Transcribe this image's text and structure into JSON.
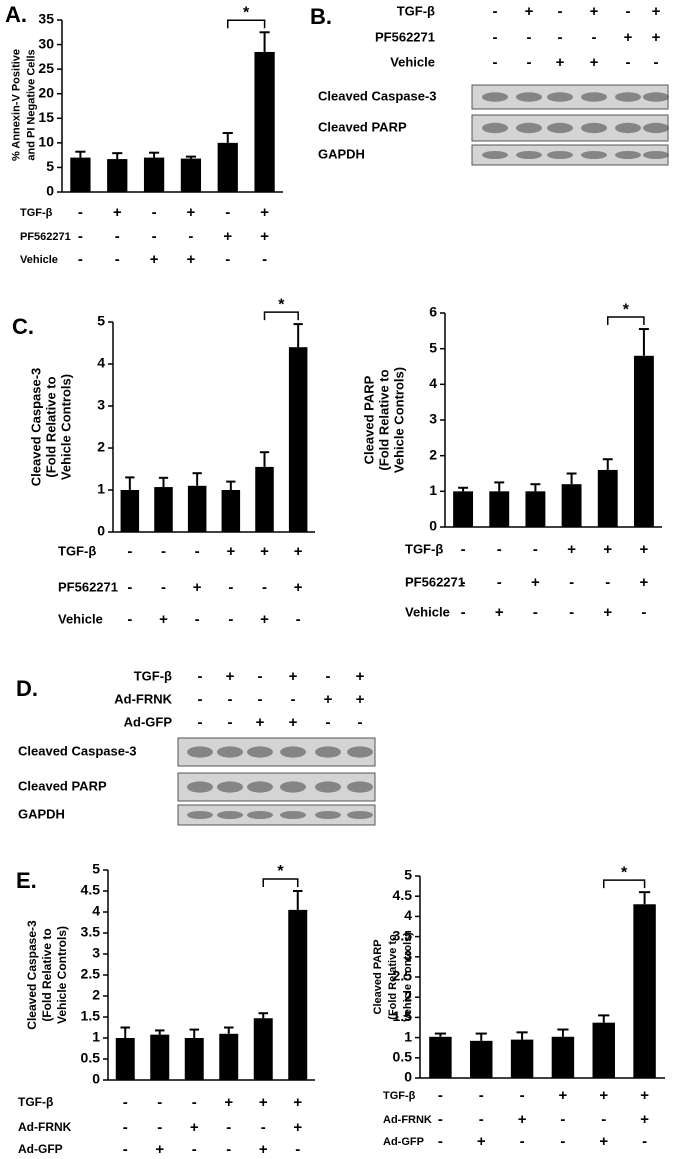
{
  "chart_data": [
    {
      "type": "bar",
      "panel": "A.",
      "ylabel": [
        "% Annexin-V Positive",
        "and PI Negative Cells"
      ],
      "categories": [
        null,
        null,
        null,
        null,
        null,
        null
      ],
      "values": [
        7,
        6.7,
        7,
        6.8,
        10,
        28.5
      ],
      "errors": [
        1.2,
        1.2,
        1,
        0.4,
        2,
        4
      ],
      "ylim": [
        0,
        35
      ],
      "yticks": [
        0,
        5,
        10,
        15,
        20,
        25,
        30,
        35
      ],
      "color": "#000000",
      "significance_label": "*",
      "conditions": [
        {
          "name": "TGF-β",
          "signs": [
            "-",
            "+",
            "-",
            "+",
            "-",
            "+"
          ]
        },
        {
          "name": "PF562271",
          "signs": [
            "-",
            "-",
            "-",
            "-",
            "+",
            "+"
          ]
        },
        {
          "name": "Vehicle",
          "signs": [
            "-",
            "-",
            "+",
            "+",
            "-",
            "-"
          ]
        }
      ]
    },
    {
      "type": "bar",
      "panel": "C.",
      "ylabel": [
        "Cleaved Caspase-3",
        "(Fold Relative to",
        "Vehicle Controls)"
      ],
      "categories": [
        null,
        null,
        null,
        null,
        null,
        null
      ],
      "values": [
        1,
        1.07,
        1.1,
        1,
        1.55,
        4.4
      ],
      "errors": [
        0.3,
        0.22,
        0.3,
        0.2,
        0.35,
        0.55
      ],
      "ylim": [
        0,
        5
      ],
      "yticks": [
        0,
        1,
        2,
        3,
        4,
        5
      ],
      "color": "#000000",
      "significance_label": "*",
      "conditions": [
        {
          "name": "TGF-β",
          "signs": [
            "-",
            "-",
            "-",
            "+",
            "+",
            "+"
          ]
        },
        {
          "name": "PF562271",
          "signs": [
            "-",
            "-",
            "+",
            "-",
            "-",
            "+"
          ]
        },
        {
          "name": "Vehicle",
          "signs": [
            "-",
            "+",
            "-",
            "-",
            "+",
            "-"
          ]
        }
      ]
    },
    {
      "type": "bar",
      "ylabel": [
        "Cleaved PARP",
        "(Fold Relative to",
        "Vehicle Controls)"
      ],
      "categories": [
        null,
        null,
        null,
        null,
        null,
        null
      ],
      "values": [
        1,
        1,
        1,
        1.2,
        1.6,
        4.8
      ],
      "errors": [
        0.1,
        0.25,
        0.2,
        0.3,
        0.3,
        0.75
      ],
      "ylim": [
        0,
        6
      ],
      "yticks": [
        0,
        1,
        2,
        3,
        4,
        5,
        6
      ],
      "color": "#000000",
      "significance_label": "*",
      "conditions": [
        {
          "name": "TGF-β",
          "signs": [
            "-",
            "-",
            "-",
            "+",
            "+",
            "+"
          ]
        },
        {
          "name": "PF562271",
          "signs": [
            "-",
            "-",
            "+",
            "-",
            "-",
            "+"
          ]
        },
        {
          "name": "Vehicle",
          "signs": [
            "-",
            "+",
            "-",
            "-",
            "+",
            "-"
          ]
        }
      ]
    },
    {
      "type": "bar",
      "panel": "E.",
      "ylabel": [
        "Cleaved Caspase-3",
        "(Fold Relative to",
        "Vehicle Controls)"
      ],
      "categories": [
        null,
        null,
        null,
        null,
        null,
        null
      ],
      "values": [
        1,
        1.08,
        1,
        1.1,
        1.47,
        4.05
      ],
      "errors": [
        0.25,
        0.1,
        0.2,
        0.15,
        0.12,
        0.45
      ],
      "ylim": [
        0,
        5
      ],
      "yticks": [
        0,
        0.5,
        1,
        1.5,
        2,
        2.5,
        3,
        3.5,
        4,
        4.5,
        5
      ],
      "color": "#000000",
      "significance_label": "*",
      "conditions": [
        {
          "name": "TGF-β",
          "signs": [
            "-",
            "-",
            "-",
            "+",
            "+",
            "+"
          ]
        },
        {
          "name": "Ad-FRNK",
          "signs": [
            "-",
            "-",
            "+",
            "-",
            "-",
            "+"
          ]
        },
        {
          "name": "Ad-GFP",
          "signs": [
            "-",
            "+",
            "-",
            "-",
            "+",
            "-"
          ]
        }
      ]
    },
    {
      "type": "bar",
      "ylabel": [
        "Cleaved PARP",
        "(Fold Relative to",
        "Vehicle Controls)"
      ],
      "categories": [
        null,
        null,
        null,
        null,
        null,
        null
      ],
      "values": [
        1.02,
        0.92,
        0.95,
        1.02,
        1.37,
        4.3
      ],
      "errors": [
        0.08,
        0.18,
        0.18,
        0.18,
        0.18,
        0.3
      ],
      "ylim": [
        0,
        5
      ],
      "yticks": [
        0,
        0.5,
        1,
        1.5,
        2,
        2.5,
        3,
        3.5,
        4,
        4.5,
        5
      ],
      "color": "#000000",
      "significance_label": "*",
      "conditions": [
        {
          "name": "TGF-β",
          "signs": [
            "-",
            "-",
            "-",
            "+",
            "+",
            "+"
          ]
        },
        {
          "name": "Ad-FRNK",
          "signs": [
            "-",
            "-",
            "+",
            "-",
            "-",
            "+"
          ]
        },
        {
          "name": "Ad-GFP",
          "signs": [
            "-",
            "+",
            "-",
            "-",
            "+",
            "-"
          ]
        }
      ]
    }
  ],
  "blots": [
    {
      "panel": "B.",
      "rows": [
        "Cleaved Caspase-3",
        "Cleaved PARP",
        "GAPDH"
      ],
      "conditions": [
        {
          "name": "TGF-β",
          "signs": [
            "-",
            "+",
            "-",
            "+",
            "-",
            "+"
          ]
        },
        {
          "name": "PF562271",
          "signs": [
            "-",
            "-",
            "-",
            "-",
            "+",
            "+"
          ]
        },
        {
          "name": "Vehicle",
          "signs": [
            "-",
            "-",
            "+",
            "+",
            "-",
            "-"
          ]
        }
      ]
    },
    {
      "panel": "D.",
      "rows": [
        "Cleaved Caspase-3",
        "Cleaved PARP",
        "GAPDH"
      ],
      "conditions": [
        {
          "name": "TGF-β",
          "signs": [
            "-",
            "+",
            "-",
            "+",
            "-",
            "+"
          ]
        },
        {
          "name": "Ad-FRNK",
          "signs": [
            "-",
            "-",
            "-",
            "-",
            "+",
            "+"
          ]
        },
        {
          "name": "Ad-GFP",
          "signs": [
            "-",
            "-",
            "+",
            "+",
            "-",
            "-"
          ]
        }
      ]
    }
  ]
}
